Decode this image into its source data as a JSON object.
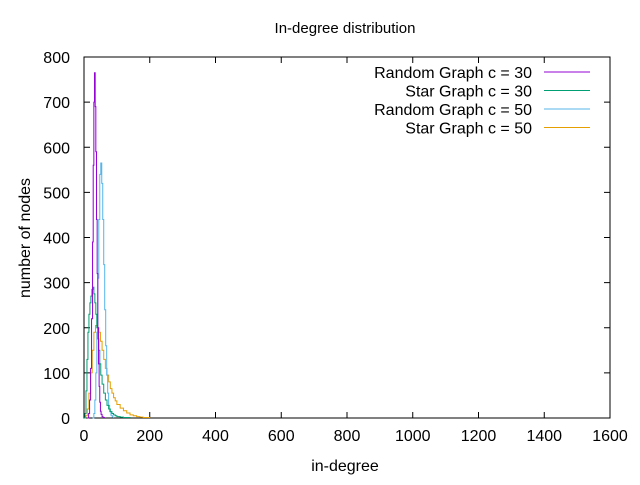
{
  "chart_data": {
    "type": "line",
    "title": "In-degree distribution",
    "xlabel": "in-degree",
    "ylabel": "number of nodes",
    "xlim": [
      0,
      1600
    ],
    "ylim": [
      0,
      800
    ],
    "xticks": [
      0,
      200,
      400,
      600,
      800,
      1000,
      1200,
      1400,
      1600
    ],
    "yticks": [
      0,
      100,
      200,
      300,
      400,
      500,
      600,
      700,
      800
    ],
    "grid": false,
    "legend_position": "top-right",
    "series": [
      {
        "name": "Random Graph c = 30",
        "color": "#9400d3",
        "x": [
          10,
          14,
          17,
          20,
          23,
          26,
          28,
          30,
          32,
          34,
          36,
          38,
          40,
          42,
          44,
          46,
          48,
          50,
          52,
          55,
          58,
          62
        ],
        "y": [
          0,
          10,
          40,
          110,
          220,
          390,
          560,
          700,
          765,
          690,
          590,
          440,
          320,
          200,
          120,
          70,
          35,
          15,
          8,
          3,
          1,
          0
        ]
      },
      {
        "name": "Star Graph c = 30",
        "color": "#009e73",
        "x": [
          0,
          3,
          6,
          9,
          12,
          15,
          18,
          21,
          24,
          27,
          30,
          33,
          36,
          39,
          42,
          45,
          48,
          51,
          55,
          60,
          65,
          70,
          75,
          80,
          85,
          90,
          95,
          100,
          110,
          120,
          130,
          140
        ],
        "y": [
          0,
          10,
          60,
          130,
          190,
          230,
          255,
          270,
          285,
          290,
          275,
          255,
          230,
          200,
          175,
          150,
          120,
          95,
          75,
          55,
          40,
          28,
          20,
          14,
          10,
          7,
          5,
          3,
          2,
          1,
          1,
          0
        ]
      },
      {
        "name": "Random Graph c = 50",
        "color": "#56b4e9",
        "x": [
          26,
          30,
          33,
          36,
          39,
          42,
          45,
          48,
          51,
          54,
          57,
          60,
          63,
          66,
          69,
          72,
          75,
          78,
          82,
          86,
          90
        ],
        "y": [
          0,
          10,
          40,
          100,
          190,
          310,
          440,
          540,
          565,
          520,
          440,
          340,
          240,
          160,
          95,
          55,
          28,
          14,
          6,
          2,
          0
        ]
      },
      {
        "name": "Star Graph c = 50",
        "color": "#e69f00",
        "x": [
          0,
          5,
          10,
          15,
          20,
          25,
          30,
          35,
          40,
          45,
          50,
          55,
          60,
          65,
          70,
          75,
          80,
          85,
          90,
          95,
          100,
          110,
          120,
          130,
          140,
          150,
          160,
          170,
          180,
          190,
          200
        ],
        "y": [
          0,
          5,
          20,
          55,
          100,
          150,
          190,
          205,
          200,
          190,
          170,
          150,
          130,
          110,
          95,
          80,
          65,
          55,
          45,
          38,
          30,
          22,
          16,
          11,
          7,
          5,
          3,
          2,
          1,
          1,
          0
        ]
      }
    ]
  }
}
